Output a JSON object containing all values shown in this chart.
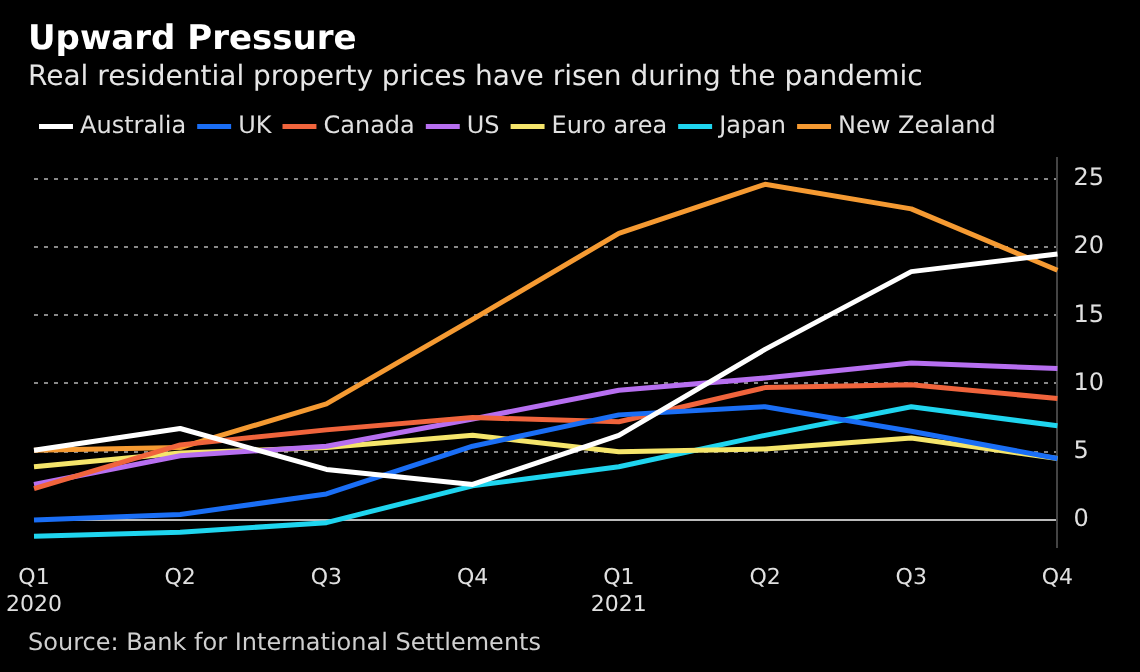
{
  "chart_data": {
    "type": "line",
    "title": "Upward Pressure",
    "subtitle": "Real residential property prices have risen during the pandemic",
    "categories": [
      "Q1\n2020",
      "Q2",
      "Q3",
      "Q4",
      "Q1\n2021",
      "Q2",
      "Q3",
      "Q4"
    ],
    "series": [
      {
        "name": "Australia",
        "color": "#ffffff",
        "values": [
          5.1,
          6.7,
          3.7,
          2.6,
          6.2,
          12.5,
          18.2,
          19.5
        ]
      },
      {
        "name": "UK",
        "color": "#1a6ef5",
        "values": [
          0,
          0.4,
          1.9,
          5.4,
          7.7,
          8.3,
          6.5,
          4.5
        ]
      },
      {
        "name": "Canada",
        "color": "#f0643c",
        "values": [
          2.3,
          5.5,
          6.6,
          7.5,
          7.2,
          9.7,
          9.9,
          8.9
        ]
      },
      {
        "name": "US",
        "color": "#b76ff0",
        "values": [
          2.6,
          4.7,
          5.4,
          7.4,
          9.5,
          10.4,
          11.5,
          11.1
        ]
      },
      {
        "name": "Euro area",
        "color": "#f5e56b",
        "values": [
          3.9,
          4.9,
          5.3,
          6.2,
          5.0,
          5.2,
          6.0,
          4.5
        ]
      },
      {
        "name": "Japan",
        "color": "#1fd5ef",
        "values": [
          -1.2,
          -0.9,
          -0.2,
          2.5,
          3.9,
          6.2,
          8.3,
          6.9
        ]
      },
      {
        "name": "New Zealand",
        "color": "#f59a32",
        "values": [
          5.1,
          5.3,
          8.5,
          14.7,
          21.0,
          24.6,
          22.8,
          18.3
        ]
      }
    ],
    "ylim": [
      -2,
      26.5
    ],
    "yticks": [
      0,
      5,
      10,
      15,
      20,
      25
    ],
    "grid": "y",
    "legend": "top left",
    "marker": "none",
    "line_style": "solid",
    "annotations": [
      "Source: Bank for International Settlements"
    ]
  }
}
